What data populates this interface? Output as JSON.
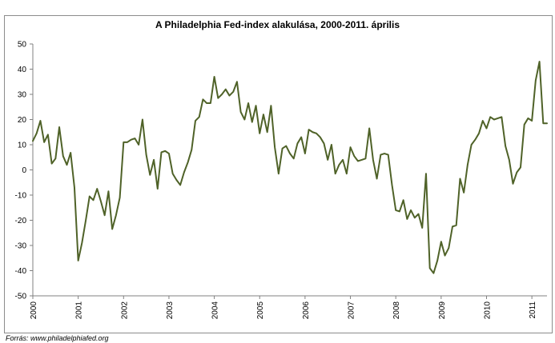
{
  "chart_data": {
    "type": "line",
    "title": "A Philadelphia Fed-index alakulása, 2000-2011. április",
    "source": "Forrás: www.philadelphiafed.org",
    "xlabel": "",
    "ylabel": "",
    "ylim": [
      -50,
      50
    ],
    "yticks": [
      -50,
      -40,
      -30,
      -20,
      -10,
      0,
      10,
      20,
      30,
      40,
      50
    ],
    "xlim": [
      2000,
      2011.333
    ],
    "xticks": [
      "2000",
      "2001",
      "2002",
      "2003",
      "2004",
      "2005",
      "2006",
      "2007",
      "2008",
      "2009",
      "2010",
      "2011"
    ],
    "grid": false,
    "legend": "none",
    "line_color": "#4f6228",
    "series": [
      {
        "x": [
          2000.0,
          2000.083,
          2000.167,
          2000.25,
          2000.333,
          2000.417,
          2000.5,
          2000.583,
          2000.667,
          2000.75,
          2000.833,
          2000.917,
          2001.0,
          2001.083,
          2001.167,
          2001.25,
          2001.333,
          2001.417,
          2001.5,
          2001.583,
          2001.667,
          2001.75,
          2001.833,
          2001.917,
          2002.0,
          2002.083,
          2002.167,
          2002.25,
          2002.333,
          2002.417,
          2002.5,
          2002.583,
          2002.667,
          2002.75,
          2002.833,
          2002.917,
          2003.0,
          2003.083,
          2003.167,
          2003.25,
          2003.333,
          2003.417,
          2003.5,
          2003.583,
          2003.667,
          2003.75,
          2003.833,
          2003.917,
          2004.0,
          2004.083,
          2004.167,
          2004.25,
          2004.333,
          2004.417,
          2004.5,
          2004.583,
          2004.667,
          2004.75,
          2004.833,
          2004.917,
          2005.0,
          2005.083,
          2005.167,
          2005.25,
          2005.333,
          2005.417,
          2005.5,
          2005.583,
          2005.667,
          2005.75,
          2005.833,
          2005.917,
          2006.0,
          2006.083,
          2006.167,
          2006.25,
          2006.333,
          2006.417,
          2006.5,
          2006.583,
          2006.667,
          2006.75,
          2006.833,
          2006.917,
          2007.0,
          2007.083,
          2007.167,
          2007.25,
          2007.333,
          2007.417,
          2007.5,
          2007.583,
          2007.667,
          2007.75,
          2007.833,
          2007.917,
          2008.0,
          2008.083,
          2008.167,
          2008.25,
          2008.333,
          2008.417,
          2008.5,
          2008.583,
          2008.667,
          2008.75,
          2008.833,
          2008.917,
          2009.0,
          2009.083,
          2009.167,
          2009.25,
          2009.333,
          2009.417,
          2009.5,
          2009.583,
          2009.667,
          2009.75,
          2009.833,
          2009.917,
          2010.0,
          2010.083,
          2010.167,
          2010.25,
          2010.333,
          2010.417,
          2010.5,
          2010.583,
          2010.667,
          2010.75,
          2010.833,
          2010.917,
          2011.0,
          2011.083,
          2011.167,
          2011.25,
          2011.333
        ],
        "values": [
          11.5,
          14.5,
          19.5,
          11.0,
          14.0,
          2.5,
          4.5,
          17.0,
          5.5,
          2.0,
          6.8,
          -7.0,
          -36.0,
          -29.0,
          -20.0,
          -10.5,
          -12.0,
          -7.5,
          -12.5,
          -18.0,
          -8.5,
          -23.5,
          -18.0,
          -11.0,
          11.0,
          11.0,
          12.0,
          12.5,
          10.0,
          20.0,
          6.0,
          -2.0,
          4.0,
          -7.5,
          7.0,
          7.5,
          6.5,
          -1.5,
          -4.0,
          -6.0,
          -1.0,
          3.0,
          8.0,
          19.5,
          21.0,
          28.0,
          26.5,
          26.5,
          37.0,
          28.5,
          30.0,
          32.0,
          29.5,
          31.0,
          35.0,
          23.0,
          20.0,
          26.5,
          19.0,
          25.5,
          14.5,
          22.0,
          15.0,
          25.5,
          9.0,
          -1.5,
          8.5,
          9.5,
          6.5,
          4.5,
          10.5,
          13.0,
          6.5,
          16.0,
          15.0,
          14.5,
          13.0,
          10.5,
          4.0,
          10.0,
          -1.5,
          2.0,
          4.0,
          -1.5,
          9.0,
          5.5,
          3.5,
          4.0,
          4.5,
          16.5,
          4.0,
          -3.5,
          6.0,
          6.5,
          6.0,
          -6.0,
          -16.0,
          -16.5,
          -12.0,
          -19.5,
          -16.0,
          -19.0,
          -17.5,
          -23.0,
          -1.5,
          -39.0,
          -41.0,
          -36.0,
          -28.5,
          -34.0,
          -31.0,
          -22.5,
          -22.0,
          -3.5,
          -9.0,
          2.0,
          10.0,
          12.0,
          14.5,
          19.5,
          16.5,
          21.0,
          20.0,
          20.5,
          21.0,
          9.5,
          4.0,
          -5.5,
          -1.0,
          1.0,
          18.0,
          20.5,
          19.5,
          35.5,
          43.0,
          18.5,
          18.5
        ]
      }
    ]
  }
}
